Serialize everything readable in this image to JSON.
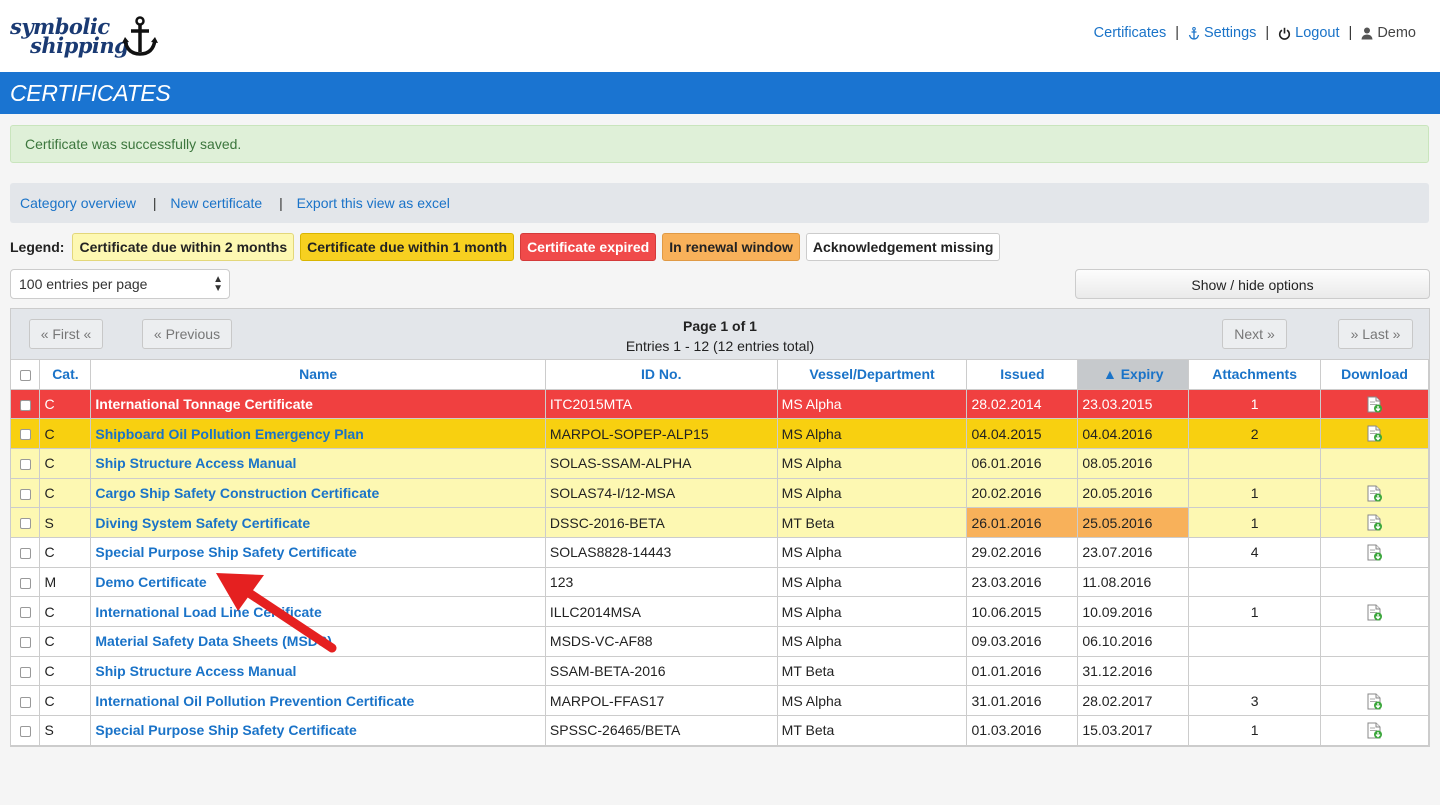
{
  "logo": {
    "line1": "symbolic",
    "line2": "shipping"
  },
  "topnav": {
    "certificates": "Certificates",
    "settings": "Settings",
    "logout": "Logout",
    "user": "Demo",
    "sep": "|"
  },
  "banner": {
    "title": "CERTIFICATES"
  },
  "alert": {
    "text": "Certificate was successfully saved."
  },
  "links": {
    "category_overview": "Category overview",
    "new_certificate": "New certificate",
    "export": "Export this view as excel",
    "sep": "|"
  },
  "legend": {
    "label": "Legend:",
    "items": [
      "Certificate due within 2 months",
      "Certificate due within 1 month",
      "Certificate expired",
      "In renewal window",
      "Acknowledgement missing"
    ]
  },
  "colors": {
    "expired": "#f04040",
    "due_1_month": "#f8d010",
    "due_2_months": "#fdf8b2",
    "renewal_window": "#f8b15a",
    "accent": "#1a74d1"
  },
  "perpage": {
    "value": "100 entries per page"
  },
  "options_button": "Show / hide options",
  "pager": {
    "first": "« First «",
    "previous": "« Previous",
    "next": "Next »",
    "last": "» Last »",
    "page": "Page 1 of 1",
    "entries": "Entries 1 - 12 (12 entries total)"
  },
  "table": {
    "headers": [
      "Cat.",
      "Name",
      "ID No.",
      "Vessel/Department",
      "Issued",
      "▲ Expiry",
      "Attachments",
      "Download"
    ],
    "rows": [
      {
        "cat": "C",
        "name": "International Tonnage Certificate",
        "id": "ITC2015MTA",
        "vessel": "MS Alpha",
        "issued": "28.02.2014",
        "expiry": "23.03.2015",
        "attachments": "1",
        "download": true,
        "status": "expired"
      },
      {
        "cat": "C",
        "name": "Shipboard Oil Pollution Emergency Plan",
        "id": "MARPOL-SOPEP-ALP15",
        "vessel": "MS Alpha",
        "issued": "04.04.2015",
        "expiry": "04.04.2016",
        "attachments": "2",
        "download": true,
        "status": "due_1_month"
      },
      {
        "cat": "C",
        "name": "Ship Structure Access Manual",
        "id": "SOLAS-SSAM-ALPHA",
        "vessel": "MS Alpha",
        "issued": "06.01.2016",
        "expiry": "08.05.2016",
        "attachments": "",
        "download": false,
        "status": "due_2_months"
      },
      {
        "cat": "C",
        "name": "Cargo Ship Safety Construction Certificate",
        "id": "SOLAS74-I/12-MSA",
        "vessel": "MS Alpha",
        "issued": "20.02.2016",
        "expiry": "20.05.2016",
        "attachments": "1",
        "download": true,
        "status": "due_2_months"
      },
      {
        "cat": "S",
        "name": "Diving System Safety Certificate",
        "id": "DSSC-2016-BETA",
        "vessel": "MT Beta",
        "issued": "26.01.2016",
        "expiry": "25.05.2016",
        "attachments": "1",
        "download": true,
        "status": "due_2_months",
        "renewal_window": true
      },
      {
        "cat": "C",
        "name": "Special Purpose Ship Safety Certificate",
        "id": "SOLAS8828-14443",
        "vessel": "MS Alpha",
        "issued": "29.02.2016",
        "expiry": "23.07.2016",
        "attachments": "4",
        "download": true,
        "status": "ok"
      },
      {
        "cat": "M",
        "name": "Demo Certificate",
        "id": "123",
        "vessel": "MS Alpha",
        "issued": "23.03.2016",
        "expiry": "11.08.2016",
        "attachments": "",
        "download": false,
        "status": "ok"
      },
      {
        "cat": "C",
        "name": "International Load Line Certificate",
        "id": "ILLC2014MSA",
        "vessel": "MS Alpha",
        "issued": "10.06.2015",
        "expiry": "10.09.2016",
        "attachments": "1",
        "download": true,
        "status": "ok"
      },
      {
        "cat": "C",
        "name": "Material Safety Data Sheets (MSDS)",
        "id": "MSDS-VC-AF88",
        "vessel": "MS Alpha",
        "issued": "09.03.2016",
        "expiry": "06.10.2016",
        "attachments": "",
        "download": false,
        "status": "ok"
      },
      {
        "cat": "C",
        "name": "Ship Structure Access Manual",
        "id": "SSAM-BETA-2016",
        "vessel": "MT Beta",
        "issued": "01.01.2016",
        "expiry": "31.12.2016",
        "attachments": "",
        "download": false,
        "status": "ok"
      },
      {
        "cat": "C",
        "name": "International Oil Pollution Prevention Certificate",
        "id": "MARPOL-FFAS17",
        "vessel": "MS Alpha",
        "issued": "31.01.2016",
        "expiry": "28.02.2017",
        "attachments": "3",
        "download": true,
        "status": "ok"
      },
      {
        "cat": "S",
        "name": "Special Purpose Ship Safety Certificate",
        "id": "SPSSC-26465/BETA",
        "vessel": "MT Beta",
        "issued": "01.03.2016",
        "expiry": "15.03.2017",
        "attachments": "1",
        "download": true,
        "status": "ok"
      }
    ]
  }
}
